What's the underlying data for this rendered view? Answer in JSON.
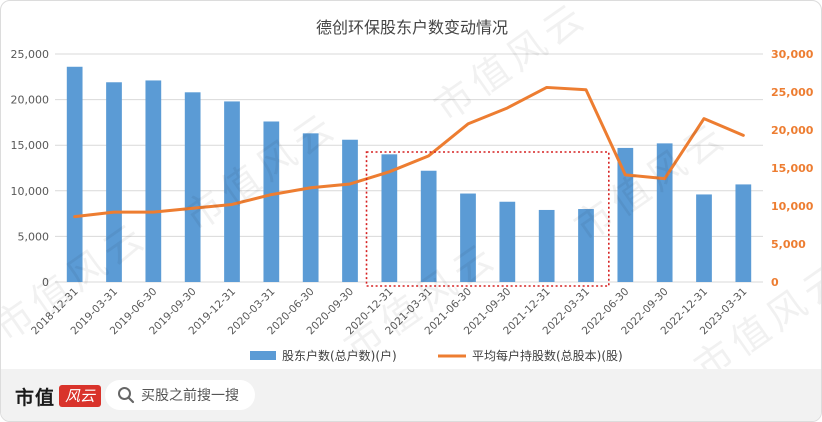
{
  "chart_data": {
    "type": "bar+line",
    "title": "德创环保股东户数变动情况",
    "categories": [
      "2018-12-31",
      "2019-03-31",
      "2019-06-30",
      "2019-09-30",
      "2019-12-31",
      "2020-03-31",
      "2020-06-30",
      "2020-09-30",
      "2020-12-31",
      "2021-03-31",
      "2021-06-30",
      "2021-09-30",
      "2021-12-31",
      "2022-03-31",
      "2022-06-30",
      "2022-09-30",
      "2022-12-31",
      "2023-03-31"
    ],
    "series": [
      {
        "name": "股东户数(总户数)(户)",
        "kind": "bar",
        "axis": "left",
        "color": "#5b9bd5",
        "values": [
          23600,
          21900,
          22100,
          20800,
          19800,
          17600,
          16300,
          15600,
          14000,
          12200,
          9700,
          8800,
          7900,
          8000,
          14700,
          15200,
          9600,
          10700
        ]
      },
      {
        "name": "平均每户持股数(总股本)(股)",
        "kind": "line",
        "axis": "right",
        "color": "#ed7d31",
        "values": [
          8600,
          9200,
          9200,
          9700,
          10200,
          11500,
          12400,
          12900,
          14500,
          16600,
          20800,
          22900,
          25600,
          25300,
          14100,
          13600,
          21500,
          19300
        ]
      }
    ],
    "y_left": {
      "min": 0,
      "max": 25000,
      "ticks": [
        "0",
        "5,000",
        "10,000",
        "15,000",
        "20,000",
        "25,000"
      ]
    },
    "y_right": {
      "min": 0,
      "max": 30000,
      "ticks": [
        "0",
        "5,000",
        "10,000",
        "15,000",
        "20,000",
        "25,000",
        "30,000"
      ],
      "color": "#ed7d31"
    },
    "grid": true,
    "legend_position": "bottom",
    "highlight_range": [
      "2020-12-31",
      "2022-03-31"
    ]
  },
  "footer": {
    "brand": "市值",
    "brand_seal": "风云",
    "search_placeholder": "买股之前搜一搜"
  },
  "watermark": "市值风云"
}
